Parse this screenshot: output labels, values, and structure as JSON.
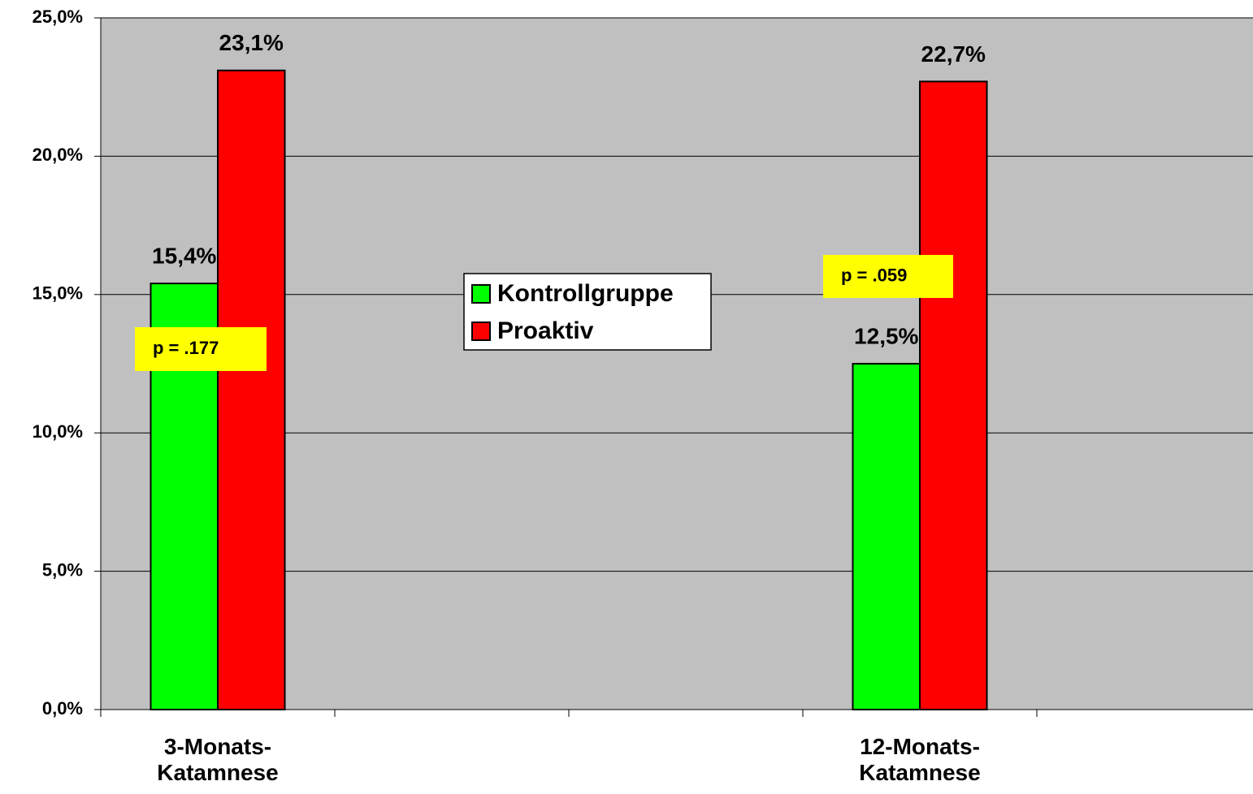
{
  "chart_data": {
    "type": "bar",
    "categories": [
      "3-Monats- Katamnese",
      null,
      null,
      "12-Monats- Katamnese",
      null
    ],
    "series": [
      {
        "name": "Kontrollgruppe",
        "color": "#00ff00",
        "values": [
          15.4,
          null,
          null,
          12.5,
          null
        ],
        "value_labels": [
          "15,4%",
          null,
          null,
          "12,5%",
          null
        ]
      },
      {
        "name": "Proaktiv",
        "color": "#ff0000",
        "values": [
          23.1,
          null,
          null,
          22.7,
          null
        ],
        "value_labels": [
          "23,1%",
          null,
          null,
          "22,7%",
          null
        ]
      }
    ],
    "ylim": [
      0,
      25
    ],
    "yticks": [
      {
        "value": 0,
        "label": "0,0%"
      },
      {
        "value": 5,
        "label": "5,0%"
      },
      {
        "value": 10,
        "label": "10,0%"
      },
      {
        "value": 15,
        "label": "15,0%"
      },
      {
        "value": 20,
        "label": "20,0%"
      },
      {
        "value": 25,
        "label": "25,0%"
      }
    ],
    "grid": true,
    "legend": "center",
    "plot_background": "#c0c0c0",
    "annotations": [
      {
        "text": "p = .177",
        "color": "#ffff00"
      },
      {
        "text": "p = .059",
        "color": "#ffff00"
      }
    ]
  }
}
